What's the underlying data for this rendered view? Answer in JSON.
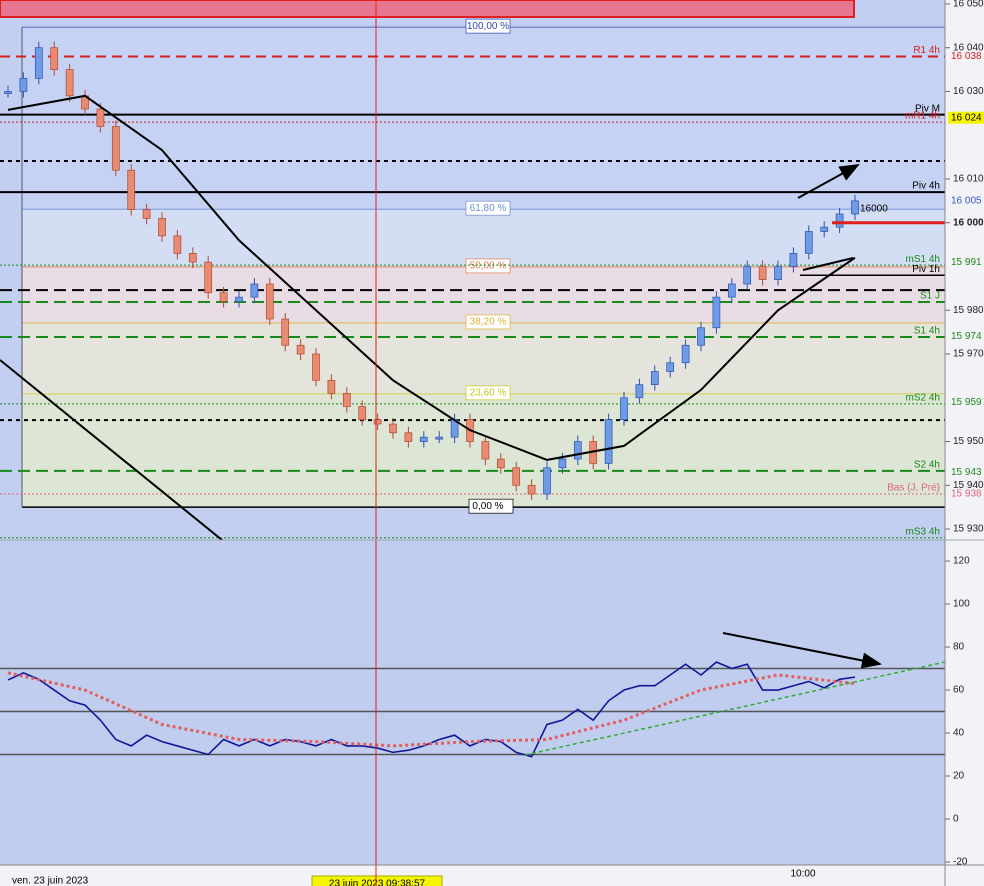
{
  "chart_data": [
    {
      "type": "candlestick",
      "values": [
        16030,
        16033,
        16040,
        16035,
        16029,
        16026,
        16022,
        16012,
        16003,
        16001,
        15997,
        15993,
        15991,
        15984,
        15982,
        15983,
        15986,
        15978,
        15972,
        15970,
        15964,
        15961,
        15958,
        15955,
        15954,
        15952,
        15950,
        15951,
        15951,
        15955,
        15950,
        15946,
        15944,
        15940,
        15938,
        15944,
        15946,
        15950,
        15945,
        15955,
        15960,
        15963,
        15966,
        15968,
        15972,
        15976,
        15983,
        15986,
        15990,
        15987,
        15990,
        15993,
        15998,
        15999,
        16002,
        16005
      ],
      "up_color": "#6f9be6",
      "down_color": "#e98a72",
      "moving_average": {
        "color": "#000000",
        "values": [
          16025.8,
          16029,
          16016.6,
          15996,
          15980,
          15964,
          15952.6,
          15945.8,
          15949,
          15961.8,
          15980,
          15992
        ]
      },
      "ylim": [
        15927.5,
        16050.9
      ],
      "yticks": [
        {
          "value": 16050,
          "label": "16 050"
        },
        {
          "value": 16040,
          "label": "16 040"
        },
        {
          "value": 16030,
          "label": "16 030"
        },
        {
          "value": 16010,
          "label": "16 010"
        },
        {
          "value": 16000,
          "label": "16 000"
        },
        {
          "value": 15980,
          "label": "15 980"
        },
        {
          "value": 15970,
          "label": "15 970"
        },
        {
          "value": 15950,
          "label": "15 950"
        },
        {
          "value": 15940,
          "label": "15 940"
        },
        {
          "value": 15930,
          "label": "15 930"
        }
      ],
      "price_labels": [
        {
          "value": 16038,
          "label": "16 038",
          "color": "#d81b1b",
          "bg": "#f3f3f7"
        },
        {
          "value": 16024,
          "label": "16 024",
          "color": "#000000",
          "bg": "#f5f500"
        },
        {
          "value": 16005,
          "label": "16 005",
          "color": "#3355cc",
          "bg": "#f3f3f7"
        },
        {
          "value": 15991,
          "label": "15 991",
          "color": "#1a8a1a",
          "bg": "#f3f3f7"
        },
        {
          "value": 15974,
          "label": "15 974",
          "color": "#1a8a1a",
          "bg": "#f3f3f7"
        },
        {
          "value": 15959,
          "label": "15 959",
          "color": "#1a8a1a",
          "bg": "#f3f3f7"
        },
        {
          "value": 15943,
          "label": "15 943",
          "color": "#1a8a1a",
          "bg": "#f3f3f7"
        },
        {
          "value": 15938,
          "label": "15 938",
          "color": "#e0607a",
          "bg": "#f3f3f7"
        }
      ],
      "levels": [
        {
          "name": "R1 4h",
          "value": 16038,
          "color": "#d81b1b",
          "dash": "10,6",
          "width": 2
        },
        {
          "name": "Piv M",
          "value": 16024.7,
          "color": "#000000",
          "dash": "",
          "width": 2
        },
        {
          "name": "mR1 4h",
          "value": 16023,
          "color": "#d81b1b",
          "dash": "2,2",
          "width": 1
        },
        {
          "value": 16014.1,
          "color": "#000000",
          "dash": "4,4",
          "width": 2
        },
        {
          "name": "Piv 4h",
          "value": 16007,
          "color": "#000000",
          "dash": "",
          "width": 2
        },
        {
          "name": "mS1 4h",
          "value": 15990.3,
          "color": "#1a8a1a",
          "dash": "2,2",
          "width": 1
        },
        {
          "name": "Piv 1h",
          "value": 15988,
          "color": "#000000",
          "dash": "",
          "width": 1.5
        },
        {
          "value": 15984.6,
          "color": "#000000",
          "dash": "12,6",
          "width": 2
        },
        {
          "name": "S1 J",
          "value": 15981.9,
          "color": "#1a8a1a",
          "dash": "12,6",
          "width": 2
        },
        {
          "name": "S1 4h",
          "value": 15973.9,
          "color": "#1a8a1a",
          "dash": "12,6",
          "width": 2
        },
        {
          "name": "mS2 4h",
          "value": 15958.6,
          "color": "#1a8a1a",
          "dash": "2,2",
          "width": 1
        },
        {
          "value": 15954.9,
          "color": "#000000",
          "dash": "4,4",
          "width": 2
        },
        {
          "name": "S2 4h",
          "value": 15943.3,
          "color": "#1a8a1a",
          "dash": "12,6",
          "width": 2
        },
        {
          "name": "Bas (J, Pré)",
          "value": 15938,
          "color": "#e0607a",
          "dash": "2,2",
          "width": 1
        },
        {
          "name": "mS3 4h",
          "value": 15928,
          "color": "#1a8a1a",
          "dash": "2,2",
          "width": 1
        }
      ],
      "fibonacci": [
        {
          "label": "100,00 %",
          "value": 16044.7,
          "color": "#3344aa",
          "band": "#c6d2f4"
        },
        {
          "label": "61,80 %",
          "value": 16003.1,
          "color": "#6f8fd0",
          "band": "#d3ddf4"
        },
        {
          "label": "50,00 %",
          "value": 15989.9,
          "color": "#e07a4a",
          "band": "#e8dde4"
        },
        {
          "label": "38,20 %",
          "value": 15977.1,
          "color": "#e0b030",
          "band": "#e4e3dc"
        },
        {
          "label": "23,60 %",
          "value": 15960.9,
          "color": "#c8c820",
          "band": "#dde6d4"
        },
        {
          "label": "0,00 %",
          "value": 15935.0,
          "color": "#000000"
        }
      ],
      "annotation": {
        "text": "16000",
        "value": 16000
      },
      "x_labels": [
        "ven. 23 juin 2023",
        "10:00",
        "23 juin 2023 09:38:57"
      ]
    },
    {
      "type": "line",
      "series": [
        {
          "color": "#10189a",
          "dash": "",
          "width": 1.6,
          "values": [
            64.7,
            68,
            65,
            60,
            55,
            53,
            46,
            37,
            34,
            39,
            36,
            34,
            32,
            30,
            37,
            34,
            37,
            34,
            37,
            36,
            34,
            37,
            34,
            34,
            33,
            31,
            32,
            34,
            37,
            39,
            34,
            37,
            36,
            31,
            29,
            44,
            46,
            51,
            46,
            55,
            60,
            62,
            62,
            67,
            72,
            67,
            73,
            70,
            72,
            60,
            60,
            62,
            64,
            61,
            65,
            66
          ]
        },
        {
          "color": "#e06060",
          "dash": "3,3",
          "width": 3,
          "values": [
            68,
            60,
            44,
            37,
            36,
            34,
            36,
            37,
            46,
            60,
            67,
            63
          ]
        }
      ],
      "ylim": [
        -21.4,
        129.8
      ],
      "yticks": [
        120,
        100,
        80,
        60,
        40,
        20,
        0,
        -20
      ],
      "levels": [
        70,
        50,
        30
      ]
    }
  ]
}
